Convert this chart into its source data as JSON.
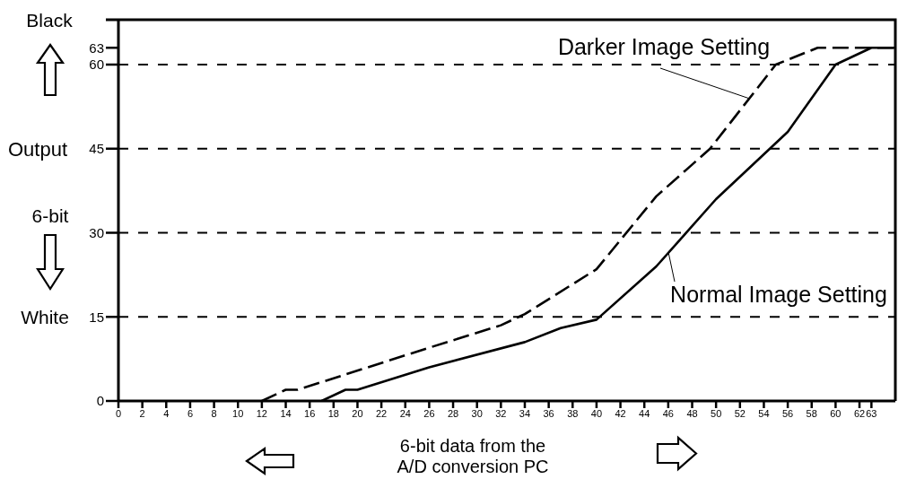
{
  "chart_data": {
    "type": "line",
    "xlabel": "6-bit data from the A/D conversion PC",
    "ylabel": "Output 6-bit",
    "annotations": [
      "Black",
      "White"
    ],
    "xlim": [
      0,
      65
    ],
    "xticks": [
      0,
      2,
      4,
      6,
      8,
      10,
      12,
      14,
      16,
      18,
      20,
      22,
      24,
      26,
      28,
      30,
      32,
      34,
      36,
      38,
      40,
      42,
      44,
      46,
      48,
      50,
      52,
      54,
      56,
      58,
      60,
      62,
      63
    ],
    "ylim": [
      0,
      68
    ],
    "yticks": [
      0,
      15,
      30,
      45,
      60,
      63
    ],
    "series": [
      {
        "name": "Normal Image Setting",
        "color": "#000000",
        "line_style": "solid",
        "x": [
          17,
          19,
          20,
          26,
          34,
          37,
          40,
          45,
          50,
          56,
          60,
          63,
          65
        ],
        "values": [
          0,
          2,
          2,
          6,
          10.5,
          13,
          14.5,
          24,
          36,
          48,
          60,
          63,
          63
        ]
      },
      {
        "name": "Darker Image Setting",
        "color": "#000000",
        "line_style": "dashed",
        "x": [
          12,
          14,
          15,
          26,
          32,
          34,
          40,
          45,
          49.5,
          55,
          58.5,
          65
        ],
        "values": [
          0,
          2,
          2,
          9.5,
          13.5,
          15.5,
          23.5,
          36.5,
          45,
          60,
          63,
          63
        ]
      }
    ],
    "ref_lines": [
      {
        "axis": "y",
        "value": 15,
        "color": "#000000",
        "line_style": "dashed"
      },
      {
        "axis": "y",
        "value": 30,
        "color": "#000000",
        "line_style": "dashed"
      },
      {
        "axis": "y",
        "value": 45,
        "color": "#000000",
        "line_style": "dashed"
      },
      {
        "axis": "y",
        "value": 60,
        "color": "#000000",
        "line_style": "dashed"
      }
    ]
  }
}
